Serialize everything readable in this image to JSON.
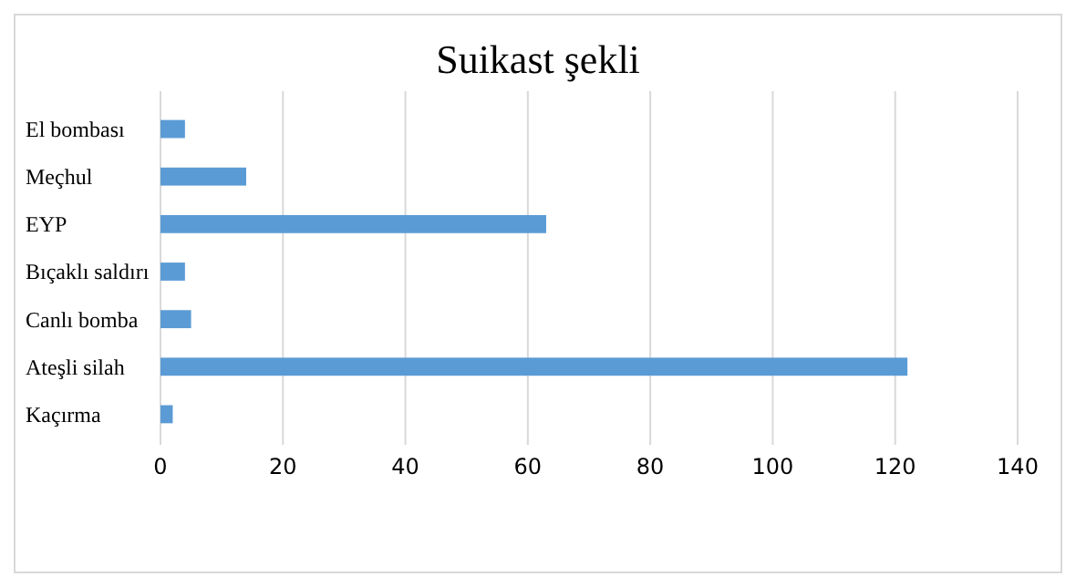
{
  "chart_data": {
    "type": "bar",
    "orientation": "horizontal",
    "title": "Suikast şekli",
    "categories": [
      "El bombası",
      "Meçhul",
      "EYP",
      "Bıçaklı saldırı",
      "Canlı bomba",
      "Ateşli silah",
      "Kaçırma"
    ],
    "values": [
      4,
      14,
      63,
      4,
      5,
      122,
      2
    ],
    "color": "#5b9bd5",
    "xlim": [
      0,
      140
    ],
    "xticks": [
      0,
      20,
      40,
      60,
      80,
      100,
      120,
      140
    ],
    "grid": "x"
  }
}
